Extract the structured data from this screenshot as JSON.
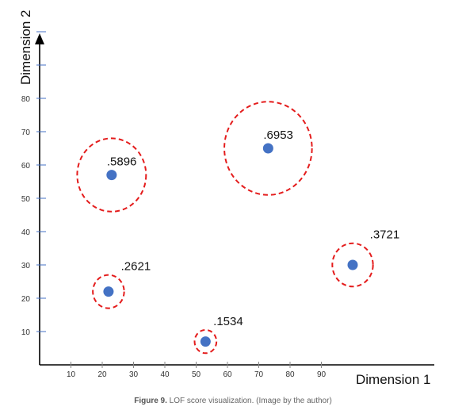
{
  "chart_data": {
    "type": "scatter",
    "xlabel": "Dimension 1",
    "ylabel": "Dimension 2",
    "xlim": [
      0,
      100
    ],
    "ylim": [
      0,
      100
    ],
    "x_ticks": [
      10,
      20,
      30,
      40,
      50,
      60,
      70,
      80,
      90
    ],
    "y_ticks": [
      10,
      20,
      30,
      40,
      50,
      60,
      70,
      80
    ],
    "grid": false,
    "points": [
      {
        "label": ".5896",
        "x": 23,
        "y": 57,
        "radius": 11
      },
      {
        "label": ".6953",
        "x": 73,
        "y": 65,
        "radius": 14
      },
      {
        "label": ".2621",
        "x": 22,
        "y": 22,
        "radius": 5
      },
      {
        "label": ".1534",
        "x": 53,
        "y": 7,
        "radius": 3.5
      },
      {
        "label": ".3721",
        "x": 100,
        "y": 30,
        "radius": 6.5
      }
    ],
    "colors": {
      "point": "#4472c4",
      "circle": "#e41c1c",
      "axis": "#000000"
    }
  },
  "caption": {
    "prefix": "Figure 9.",
    "text": " LOF score visualization. (Image by the author)"
  }
}
